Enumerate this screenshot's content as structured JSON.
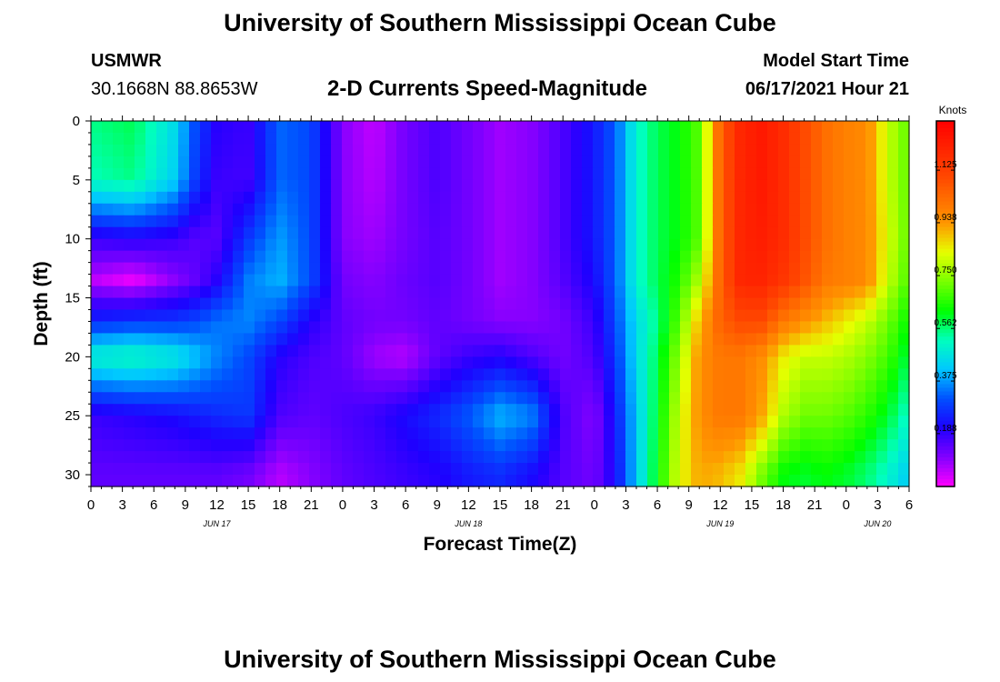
{
  "header": {
    "title": "University of Southern Mississippi Ocean Cube",
    "station": "USMWR",
    "coordinates": "30.1668N  88.8653W",
    "subtitle": "2-D Currents Speed-Magnitude",
    "model_start_label": "Model Start Time",
    "model_start_value": "06/17/2021 Hour 21"
  },
  "footer": {
    "title": "University of Southern Mississippi Ocean Cube"
  },
  "chart_data": {
    "type": "heatmap",
    "title": "2-D Currents Speed-Magnitude",
    "xlabel": "Forecast Time(Z)",
    "ylabel": "Depth (ft)",
    "x_ticks": [
      "0",
      "3",
      "6",
      "9",
      "12",
      "15",
      "18",
      "21",
      "0",
      "3",
      "6",
      "9",
      "12",
      "15",
      "18",
      "21",
      "0",
      "3",
      "6",
      "9",
      "12",
      "15",
      "18",
      "21",
      "0",
      "3",
      "6"
    ],
    "date_labels": [
      "JUN 17",
      "JUN 18",
      "JUN 19",
      "JUN 20"
    ],
    "y_ticks": [
      "0",
      "5",
      "10",
      "15",
      "20",
      "25",
      "30"
    ],
    "ylim": [
      0,
      31
    ],
    "xlim_hours": [
      0,
      78
    ],
    "colorbar": {
      "unit": "Knots",
      "ticks": [
        "0.188",
        "0.375",
        "0.562",
        "0.750",
        "0.938",
        "1.125"
      ],
      "range": [
        0.0,
        1.3
      ]
    },
    "sample_depths_ft": [
      0,
      5,
      10,
      13.5,
      17,
      20,
      25,
      30
    ],
    "sample_hours": [
      0,
      4,
      8,
      10,
      12,
      15,
      18,
      21,
      24,
      27,
      30,
      33,
      36,
      39,
      42,
      45,
      48,
      50,
      52,
      54,
      56,
      58,
      60,
      62,
      64,
      66,
      68,
      70,
      72,
      74,
      76,
      78
    ],
    "values_knots": [
      [
        0.55,
        0.58,
        0.45,
        0.3,
        0.2,
        0.18,
        0.33,
        0.3,
        0.1,
        0.05,
        0.12,
        0.16,
        0.12,
        0.08,
        0.1,
        0.16,
        0.24,
        0.32,
        0.5,
        0.58,
        0.62,
        0.7,
        1.05,
        1.2,
        1.23,
        1.18,
        1.1,
        1.02,
        0.98,
        0.96,
        0.8,
        0.7
      ],
      [
        0.52,
        0.55,
        0.43,
        0.28,
        0.18,
        0.17,
        0.33,
        0.3,
        0.1,
        0.06,
        0.12,
        0.16,
        0.12,
        0.08,
        0.1,
        0.16,
        0.24,
        0.32,
        0.5,
        0.58,
        0.62,
        0.7,
        1.05,
        1.2,
        1.23,
        1.18,
        1.1,
        1.02,
        0.98,
        0.96,
        0.8,
        0.7
      ],
      [
        0.18,
        0.2,
        0.18,
        0.15,
        0.15,
        0.28,
        0.38,
        0.3,
        0.1,
        0.08,
        0.12,
        0.15,
        0.12,
        0.08,
        0.1,
        0.16,
        0.24,
        0.32,
        0.5,
        0.58,
        0.62,
        0.7,
        1.05,
        1.2,
        1.22,
        1.18,
        1.1,
        1.02,
        0.98,
        0.96,
        0.82,
        0.7
      ],
      [
        0.06,
        0.02,
        0.1,
        0.14,
        0.2,
        0.35,
        0.4,
        0.3,
        0.12,
        0.1,
        0.13,
        0.15,
        0.12,
        0.08,
        0.1,
        0.15,
        0.22,
        0.32,
        0.5,
        0.58,
        0.65,
        0.78,
        1.05,
        1.2,
        1.2,
        1.15,
        1.08,
        1.0,
        0.98,
        0.96,
        0.8,
        0.68
      ],
      [
        0.26,
        0.28,
        0.28,
        0.3,
        0.34,
        0.36,
        0.3,
        0.2,
        0.14,
        0.12,
        0.12,
        0.14,
        0.12,
        0.1,
        0.1,
        0.12,
        0.18,
        0.3,
        0.45,
        0.55,
        0.7,
        0.9,
        1.05,
        1.1,
        1.1,
        1.0,
        0.95,
        0.9,
        0.85,
        0.8,
        0.72,
        0.62
      ],
      [
        0.5,
        0.52,
        0.48,
        0.42,
        0.36,
        0.3,
        0.2,
        0.16,
        0.14,
        0.08,
        0.06,
        0.14,
        0.18,
        0.2,
        0.16,
        0.12,
        0.16,
        0.28,
        0.45,
        0.58,
        0.75,
        0.95,
        1.0,
        1.0,
        0.95,
        0.85,
        0.8,
        0.8,
        0.78,
        0.74,
        0.68,
        0.58
      ],
      [
        0.18,
        0.2,
        0.22,
        0.24,
        0.26,
        0.28,
        0.16,
        0.14,
        0.16,
        0.18,
        0.22,
        0.26,
        0.32,
        0.4,
        0.36,
        0.16,
        0.1,
        0.24,
        0.42,
        0.6,
        0.8,
        0.95,
        1.0,
        1.0,
        0.92,
        0.78,
        0.72,
        0.72,
        0.7,
        0.66,
        0.6,
        0.5
      ],
      [
        0.14,
        0.14,
        0.14,
        0.14,
        0.14,
        0.12,
        0.06,
        0.1,
        0.14,
        0.16,
        0.18,
        0.2,
        0.24,
        0.26,
        0.22,
        0.15,
        0.12,
        0.22,
        0.42,
        0.62,
        0.82,
        0.92,
        0.9,
        0.85,
        0.72,
        0.62,
        0.6,
        0.62,
        0.6,
        0.56,
        0.5,
        0.42
      ]
    ]
  }
}
